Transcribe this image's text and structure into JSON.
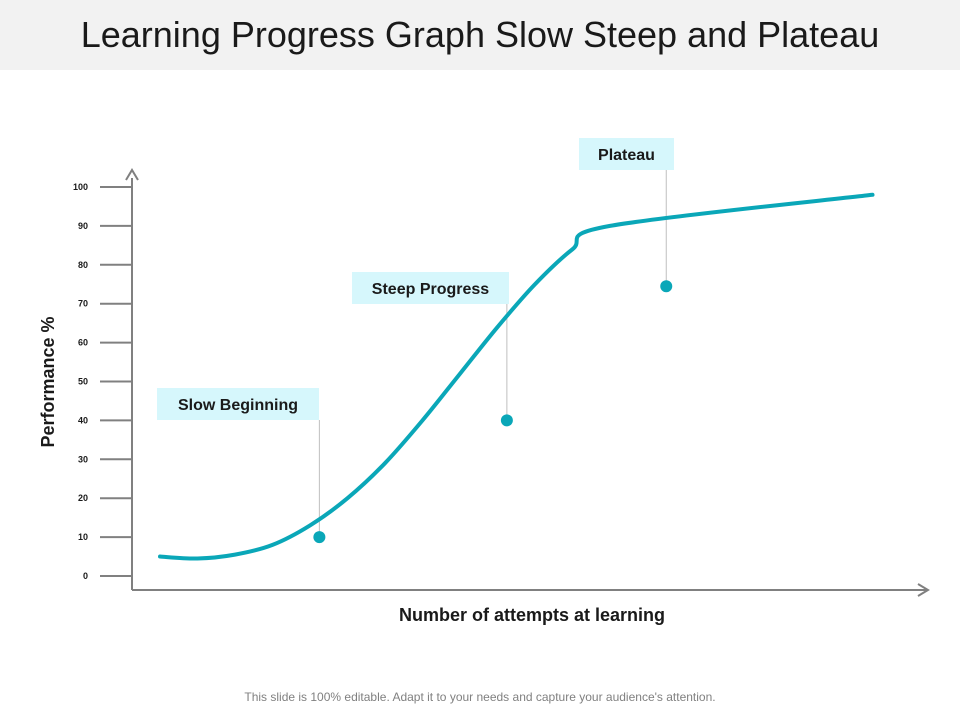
{
  "title": "Learning Progress Graph Slow Steep and Plateau",
  "footer": "This slide is 100% editable. Adapt it to your needs and capture your audience's attention.",
  "colors": {
    "curve": "#0aa7b8",
    "callout_bg": "#d6f7fc",
    "axis": "#808080",
    "leader": "#bfbfbf"
  },
  "chart_data": {
    "type": "line",
    "xlabel": "Number of attempts at learning",
    "ylabel": "Performance %",
    "ylim": [
      0,
      100
    ],
    "yticks": [
      0,
      10,
      20,
      30,
      40,
      50,
      60,
      70,
      80,
      90,
      100
    ],
    "grid": false,
    "series": [
      {
        "x": [
          0,
          2,
          4,
          6,
          8,
          10,
          12,
          14,
          16,
          18,
          20,
          22,
          24
        ],
        "values": [
          5,
          4.5,
          5.5,
          8,
          13,
          20,
          29,
          40,
          52,
          64,
          75,
          84,
          90
        ]
      }
    ],
    "annotations": [
      {
        "label": "Slow Beginning",
        "x": 8.5,
        "y": 10
      },
      {
        "label": "Steep Progress",
        "x": 18.5,
        "y": 40
      },
      {
        "label": "Plateau",
        "x": 27,
        "y": 74.5
      }
    ],
    "curve_end": {
      "x": 38,
      "y": 98
    },
    "x_range": [
      0,
      40
    ]
  }
}
